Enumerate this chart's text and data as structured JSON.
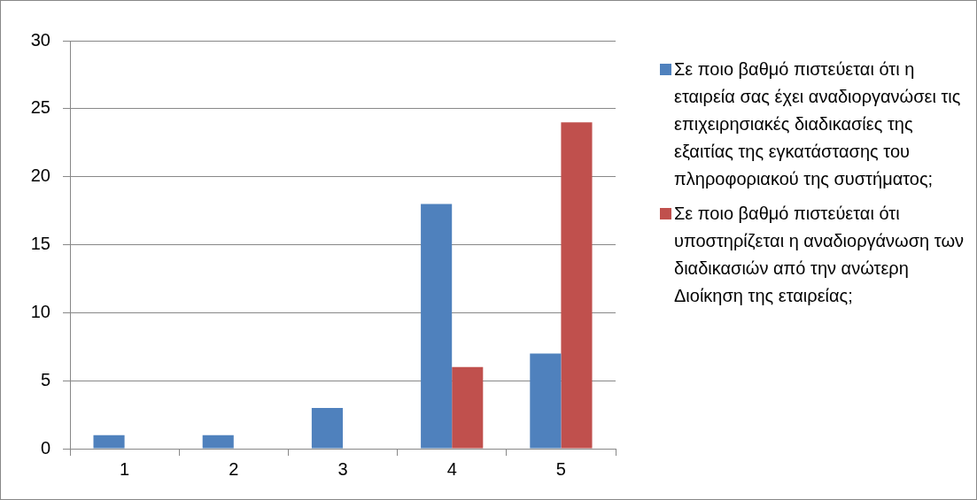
{
  "chart_data": {
    "type": "bar",
    "categories": [
      "1",
      "2",
      "3",
      "4",
      "5"
    ],
    "series": [
      {
        "name": "Σε ποιο βαθμό πιστεύεται ότι η εταιρεία σας έχει αναδιοργανώσει τις επιχειρησιακές διαδικασίες της εξαιτίας της εγκατάστασης του πληροφοριακού της συστήματος;",
        "color": "#4f81bd",
        "values": [
          1,
          1,
          3,
          18,
          7
        ]
      },
      {
        "name": "Σε ποιο βαθμό πιστεύεται ότι υποστηρίζεται η αναδιοργάνωση των διαδικασιών από την ανώτερη Διοίκηση της εταιρείας;",
        "color": "#c0504d",
        "values": [
          0,
          0,
          0,
          6,
          24
        ]
      }
    ],
    "ylim": [
      0,
      30
    ],
    "yticks": [
      0,
      5,
      10,
      15,
      20,
      25,
      30
    ],
    "grid": "y",
    "legend": "right"
  }
}
